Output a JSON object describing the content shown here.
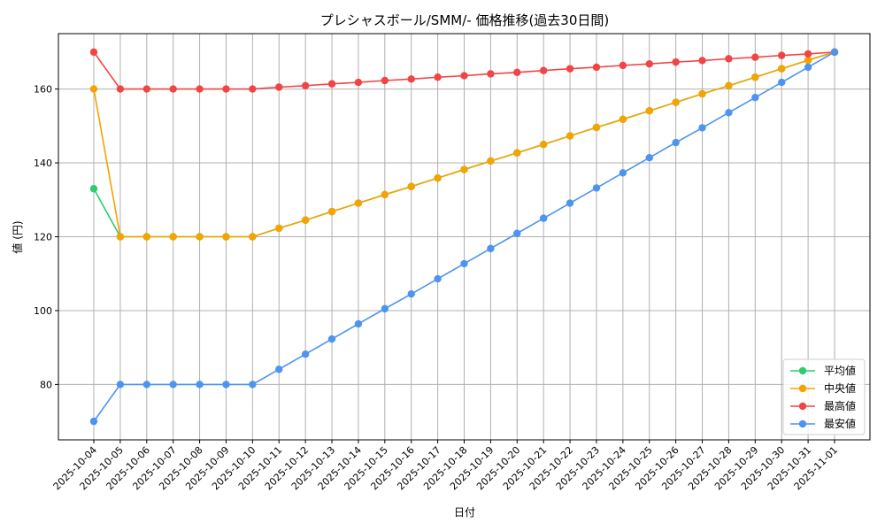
{
  "chart_data": {
    "type": "line",
    "title": "プレシャスボール/SMM/- 価格推移(過去30日間)",
    "xlabel": "日付",
    "ylabel": "値 (円)",
    "ylim": [
      65,
      175
    ],
    "yticks": [
      80,
      100,
      120,
      140,
      160
    ],
    "grid": true,
    "legend_position": "lower-right",
    "categories": [
      "2025-10-04",
      "2025-10-05",
      "2025-10-06",
      "2025-10-07",
      "2025-10-08",
      "2025-10-09",
      "2025-10-10",
      "2025-10-11",
      "2025-10-12",
      "2025-10-13",
      "2025-10-14",
      "2025-10-15",
      "2025-10-16",
      "2025-10-17",
      "2025-10-18",
      "2025-10-19",
      "2025-10-20",
      "2025-10-21",
      "2025-10-22",
      "2025-10-23",
      "2025-10-24",
      "2025-10-25",
      "2025-10-26",
      "2025-10-27",
      "2025-10-28",
      "2025-10-29",
      "2025-10-30",
      "2025-10-31",
      "2025-11-01"
    ],
    "series": [
      {
        "name": "平均値",
        "color": "#2ecc71",
        "values": [
          133,
          120,
          120,
          120,
          120,
          120,
          120,
          122.3,
          124.5,
          126.8,
          129.1,
          131.4,
          133.6,
          135.9,
          138.2,
          140.5,
          142.7,
          145.0,
          147.3,
          149.6,
          151.8,
          154.1,
          156.4,
          158.7,
          160.9,
          163.2,
          165.5,
          167.8,
          170
        ]
      },
      {
        "name": "中央値",
        "color": "#f5a300",
        "values": [
          160,
          120,
          120,
          120,
          120,
          120,
          120,
          122.3,
          124.5,
          126.8,
          129.1,
          131.4,
          133.6,
          135.9,
          138.2,
          140.5,
          142.7,
          145.0,
          147.3,
          149.6,
          151.8,
          154.1,
          156.4,
          158.7,
          160.9,
          163.2,
          165.5,
          167.8,
          170
        ]
      },
      {
        "name": "最高値",
        "color": "#f24444",
        "values": [
          170,
          160,
          160,
          160,
          160,
          160,
          160,
          160.5,
          160.9,
          161.4,
          161.8,
          162.3,
          162.7,
          163.2,
          163.6,
          164.1,
          164.5,
          165.0,
          165.5,
          165.9,
          166.4,
          166.8,
          167.3,
          167.7,
          168.2,
          168.6,
          169.1,
          169.5,
          170
        ]
      },
      {
        "name": "最安値",
        "color": "#4d94f0",
        "values": [
          70,
          80,
          80,
          80,
          80,
          80,
          80,
          84.1,
          88.2,
          92.3,
          96.4,
          100.5,
          104.5,
          108.6,
          112.7,
          116.8,
          120.9,
          125.0,
          129.1,
          133.2,
          137.3,
          141.4,
          145.5,
          149.5,
          153.6,
          157.7,
          161.8,
          165.9,
          170
        ]
      }
    ]
  }
}
